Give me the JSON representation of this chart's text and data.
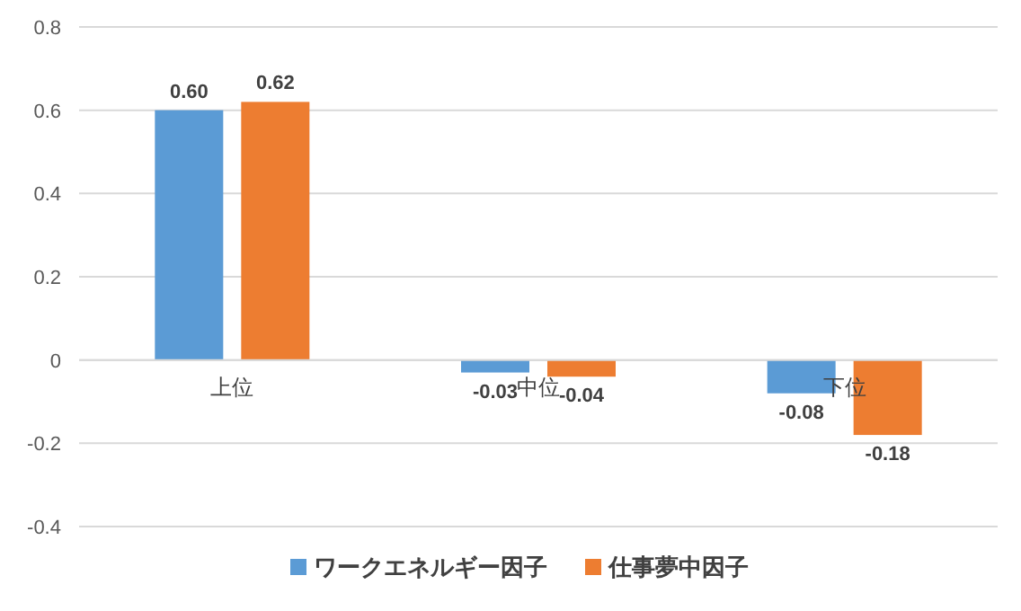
{
  "chart_data": {
    "type": "bar",
    "categories": [
      "上位",
      "中位",
      "下位"
    ],
    "series": [
      {
        "name": "ワークエネルギー因子",
        "color": "#5b9bd5",
        "values": [
          0.6,
          -0.03,
          -0.08
        ],
        "value_labels": [
          "0.60",
          "-0.03",
          "-0.08"
        ]
      },
      {
        "name": "仕事夢中因子",
        "color": "#ed7d31",
        "values": [
          0.62,
          -0.04,
          -0.18
        ],
        "value_labels": [
          "0.62",
          "-0.04",
          "-0.18"
        ]
      }
    ],
    "ylim": [
      -0.4,
      0.8
    ],
    "yticks": [
      -0.4,
      -0.2,
      0,
      0.2,
      0.4,
      0.6,
      0.8
    ],
    "grid": "y",
    "legend": "bottom"
  }
}
